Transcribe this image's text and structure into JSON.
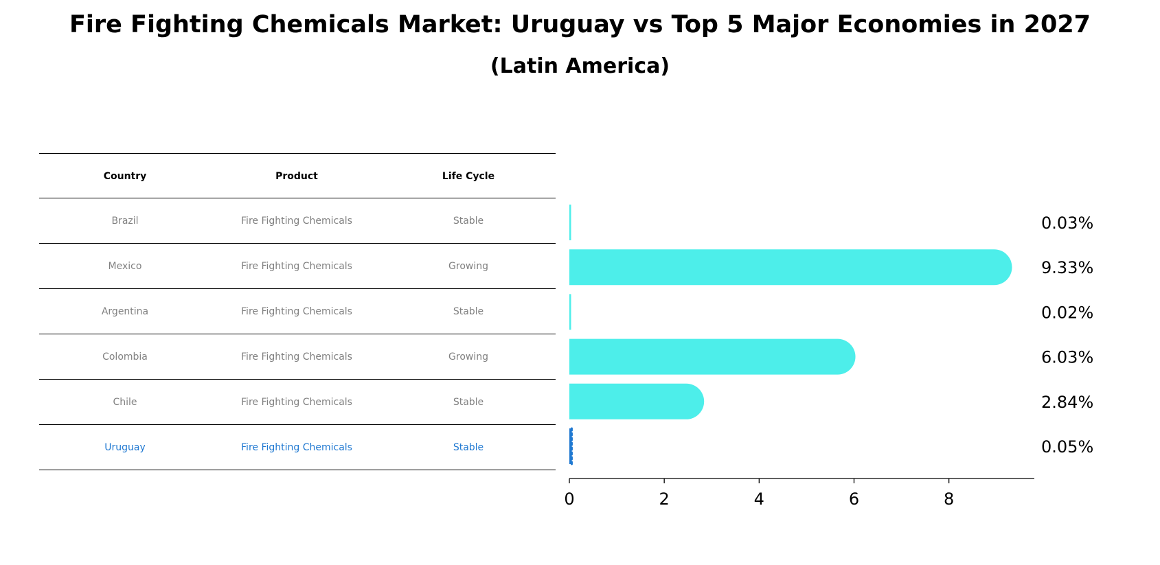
{
  "title": "Fire Fighting Chemicals Market: Uruguay vs Top 5 Major Economies in 2027",
  "subtitle": "(Latin America)",
  "table": {
    "headers": [
      "Country",
      "Product",
      "Life Cycle"
    ],
    "rows": [
      {
        "country": "Brazil",
        "product": "Fire Fighting Chemicals",
        "life_cycle": "Stable"
      },
      {
        "country": "Mexico",
        "product": "Fire Fighting Chemicals",
        "life_cycle": "Growing"
      },
      {
        "country": "Argentina",
        "product": "Fire Fighting Chemicals",
        "life_cycle": "Stable"
      },
      {
        "country": "Colombia",
        "product": "Fire Fighting Chemicals",
        "life_cycle": "Growing"
      },
      {
        "country": "Chile",
        "product": "Fire Fighting Chemicals",
        "life_cycle": "Stable"
      },
      {
        "country": "Uruguay",
        "product": "Fire Fighting Chemicals",
        "life_cycle": "Stable"
      }
    ]
  },
  "colors": {
    "bar": "#4deeea",
    "highlight": "#1f78d1",
    "muted_text": "#808080"
  },
  "chart_data": {
    "type": "bar",
    "orientation": "horizontal",
    "categories": [
      "Brazil",
      "Mexico",
      "Argentina",
      "Colombia",
      "Chile",
      "Uruguay"
    ],
    "values": [
      0.03,
      9.33,
      0.02,
      6.03,
      2.84,
      0.05
    ],
    "value_labels": [
      "0.03%",
      "9.33%",
      "0.02%",
      "6.03%",
      "2.84%",
      "0.05%"
    ],
    "highlight_category": "Uruguay",
    "xlim": [
      0,
      9.8
    ],
    "xticks": [
      0,
      2,
      4,
      6,
      8
    ],
    "xtick_labels": [
      "0",
      "2",
      "4",
      "6",
      "8"
    ],
    "xlabel": "",
    "ylabel": "",
    "grid": false,
    "legend": "none"
  }
}
